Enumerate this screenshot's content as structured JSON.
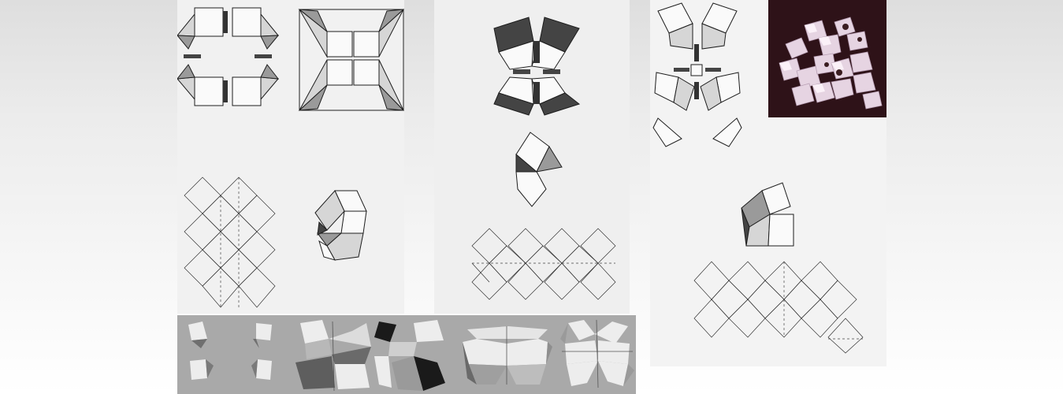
{
  "figure": {
    "panels": [
      {
        "id": "sheet-1",
        "kind": "pencil-drawing-sheet"
      },
      {
        "id": "sheet-2",
        "kind": "pencil-drawing-sheet"
      },
      {
        "id": "sheet-3",
        "kind": "pencil-drawing-sheet"
      },
      {
        "id": "photo",
        "kind": "photograph"
      },
      {
        "id": "strip",
        "kind": "rendered-3d-sequence",
        "frames": 6
      }
    ],
    "colors": {
      "page_top": "#dedede",
      "page_bottom": "#ffffff",
      "paper": "#f1f1f1",
      "pencil": "#1e1e1e",
      "photo_background": "#2e1218",
      "photo_objects": "#e8d8e4",
      "render_background": "#a9a9a9"
    }
  }
}
